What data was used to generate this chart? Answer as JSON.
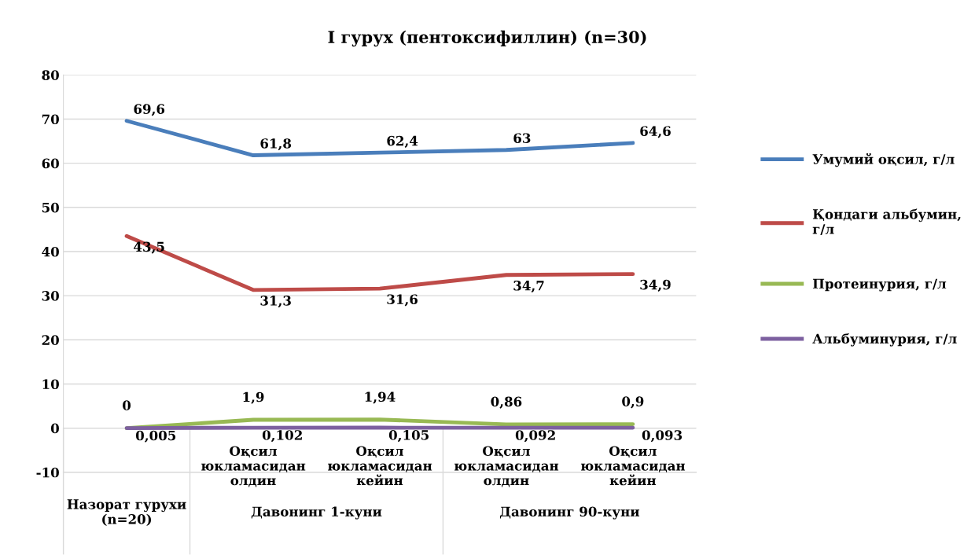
{
  "chart_data": {
    "type": "line",
    "title": "I гурух (пентоксифиллин) (n=30)",
    "categories": [
      null,
      "Оқсил юкламасидан олдин",
      "Оқсил юкламасидан кейин",
      "Оқсил юкламасидан олдин",
      "Оқсил юкламасидан кейин"
    ],
    "annotations": [
      "Назорат гурухи\n(n=20)",
      "Давонинг 1-куни",
      "Давонинг 90-куни"
    ],
    "series": [
      {
        "name": "Умумий оқсил, г/л",
        "color": "#4a7ebb",
        "values": [
          69.6,
          61.8,
          62.4,
          63,
          64.6
        ],
        "value_labels": [
          "69,6",
          "61,8",
          "62,4",
          "63",
          "64,6"
        ]
      },
      {
        "name": "Қондаги альбумин,\nг/л",
        "color": "#be4b48",
        "values": [
          43.5,
          31.3,
          31.6,
          34.7,
          34.9
        ],
        "value_labels": [
          "43,5",
          "31,3",
          "31,6",
          "34,7",
          "34,9"
        ]
      },
      {
        "name": "Протеинурия, г/л",
        "color": "#98b954",
        "values": [
          0,
          1.9,
          1.94,
          0.86,
          0.9
        ],
        "value_labels": [
          "0",
          "1,9",
          "1,94",
          "0,86",
          "0,9"
        ]
      },
      {
        "name": "Альбуминурия, г/л",
        "color": "#7d60a0",
        "values": [
          0.005,
          0.102,
          0.105,
          0.092,
          0.093
        ],
        "value_labels": [
          "0,005",
          "0,102",
          "0,105",
          "0,092",
          "0,093"
        ]
      }
    ],
    "ylim": [
      -10,
      80
    ],
    "yticks": [
      -10,
      0,
      10,
      20,
      30,
      40,
      50,
      60,
      70,
      80
    ],
    "grid": "y",
    "legend": "right",
    "marker": "none",
    "line_style": "solid"
  }
}
